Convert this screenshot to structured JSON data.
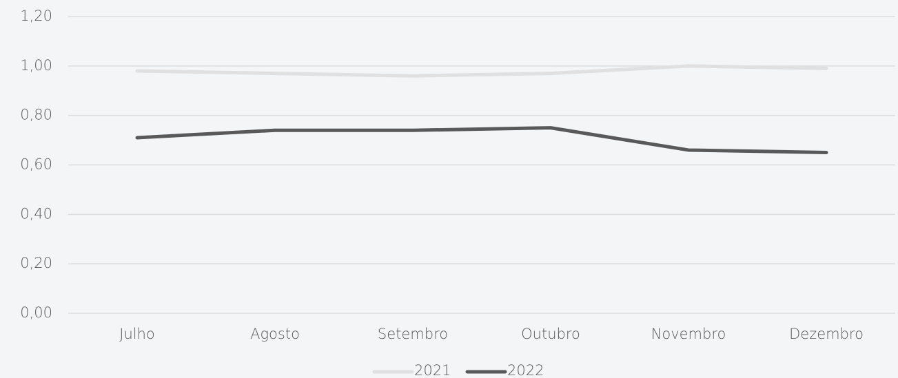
{
  "chart_data": {
    "type": "line",
    "categories": [
      "Julho",
      "Agosto",
      "Setembro",
      "Outubro",
      "Novembro",
      "Dezembro"
    ],
    "series": [
      {
        "name": "2021",
        "color": "#e0e0e0",
        "values": [
          0.98,
          0.97,
          0.96,
          0.97,
          1.0,
          0.99
        ]
      },
      {
        "name": "2022",
        "color": "#595959",
        "values": [
          0.71,
          0.74,
          0.74,
          0.75,
          0.66,
          0.65
        ]
      }
    ],
    "ylim": [
      0,
      1.2
    ],
    "yticks": [
      {
        "value": 0,
        "label": "0,00"
      },
      {
        "value": 0.2,
        "label": "0,20"
      },
      {
        "value": 0.4,
        "label": "0,40"
      },
      {
        "value": 0.6,
        "label": "0,60"
      },
      {
        "value": 0.8,
        "label": "0,80"
      },
      {
        "value": 1.0,
        "label": "1,00"
      },
      {
        "value": 1.2,
        "label": "1,20"
      }
    ],
    "grid": true,
    "legend": "bottom"
  }
}
